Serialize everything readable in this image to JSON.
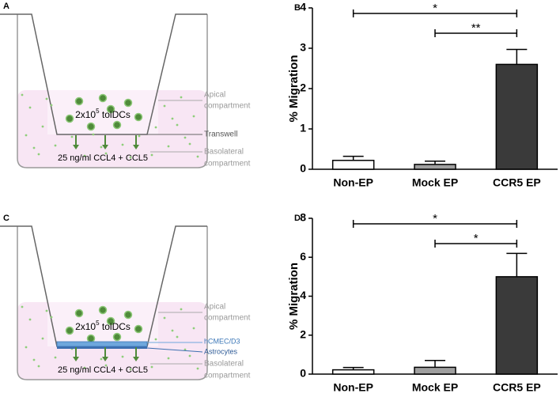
{
  "diagrams": [
    {
      "letter": "A",
      "cells": {
        "base": "2x10",
        "sup": "5",
        "rest": " tolDCs"
      },
      "apical": [
        "Apical",
        "compartment"
      ],
      "membrane": "Transwell",
      "basolateral": [
        "Basolateral",
        "compartment"
      ],
      "medium": "25 ng/ml CCL4 + CCL5"
    },
    {
      "letter": "C",
      "cells": {
        "base": "2x10",
        "sup": "5",
        "rest": " tolDCs"
      },
      "apical": [
        "Apical",
        "compartment"
      ],
      "layers": [
        "hCMEC/D3",
        "Astrocytes"
      ],
      "basolateral": [
        "Basolateral",
        "compartment"
      ],
      "medium": "25 ng/ml CCL4 + CCL5"
    }
  ],
  "chart_data": [
    {
      "type": "bar",
      "letter": "B",
      "ylabel": "% Migration",
      "categories": [
        "Non-EP",
        "Mock EP",
        "CCR5 EP"
      ],
      "values": [
        0.22,
        0.12,
        2.6
      ],
      "errors": [
        0.1,
        0.08,
        0.37
      ],
      "colors": [
        "#ffffff",
        "#a0a0a0",
        "#3a3a3a"
      ],
      "ylim": [
        0,
        4
      ],
      "yticks": [
        0,
        1,
        2,
        3,
        4
      ],
      "annotations": [
        {
          "text": "*",
          "from": 0,
          "to": 2
        },
        {
          "text": "**",
          "from": 1,
          "to": 2
        }
      ]
    },
    {
      "type": "bar",
      "letter": "D",
      "ylabel": "% Migration",
      "categories": [
        "Non-EP",
        "Mock EP",
        "CCR5 EP"
      ],
      "values": [
        0.22,
        0.35,
        5.0
      ],
      "errors": [
        0.12,
        0.35,
        1.2
      ],
      "colors": [
        "#ffffff",
        "#a0a0a0",
        "#3a3a3a"
      ],
      "ylim": [
        0,
        8
      ],
      "yticks": [
        0,
        2,
        4,
        6,
        8
      ],
      "annotations": [
        {
          "text": "*",
          "from": 0,
          "to": 2
        },
        {
          "text": "*",
          "from": 1,
          "to": 2
        }
      ]
    }
  ]
}
